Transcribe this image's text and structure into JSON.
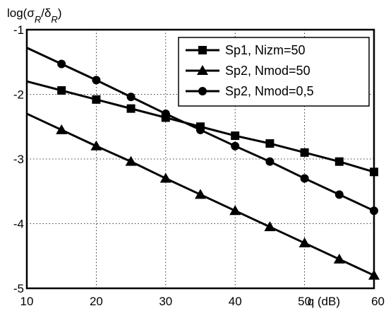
{
  "chart_data": {
    "type": "line",
    "title": "",
    "ylabel": "log(σ_R/δ_R)",
    "xlabel": "q (dB)",
    "xlim": [
      10,
      60
    ],
    "ylim": [
      -5,
      -1
    ],
    "xticks": [
      10,
      20,
      30,
      40,
      50,
      60
    ],
    "xtick_labels": [
      "10",
      "20",
      "30",
      "40",
      "50",
      "60"
    ],
    "yticks": [
      -5,
      -4,
      -3,
      -2,
      -1
    ],
    "ytick_labels": [
      "-5",
      "-4",
      "-3",
      "-2",
      "-1"
    ],
    "grid": true,
    "legend_position": "top-right",
    "series": [
      {
        "name": "Sp1, Nizm=50",
        "marker": "square",
        "x": [
          10,
          15,
          20,
          25,
          30,
          35,
          40,
          45,
          50,
          55,
          60
        ],
        "y": [
          -1.8,
          -1.94,
          -2.08,
          -2.22,
          -2.36,
          -2.5,
          -2.64,
          -2.76,
          -2.9,
          -3.04,
          -3.2
        ]
      },
      {
        "name": "Sp2, Nmod=50",
        "marker": "triangle",
        "x": [
          10,
          15,
          20,
          25,
          30,
          35,
          40,
          45,
          50,
          55,
          60
        ],
        "y": [
          -2.3,
          -2.55,
          -2.8,
          -3.04,
          -3.3,
          -3.55,
          -3.8,
          -4.05,
          -4.3,
          -4.55,
          -4.8
        ]
      },
      {
        "name": "Sp2, Nmod=0,5",
        "marker": "circle",
        "x": [
          10,
          15,
          20,
          25,
          30,
          35,
          40,
          45,
          50,
          55,
          60
        ],
        "y": [
          -1.28,
          -1.53,
          -1.78,
          -2.04,
          -2.3,
          -2.55,
          -2.8,
          -3.04,
          -3.3,
          -3.55,
          -3.8
        ]
      }
    ]
  }
}
